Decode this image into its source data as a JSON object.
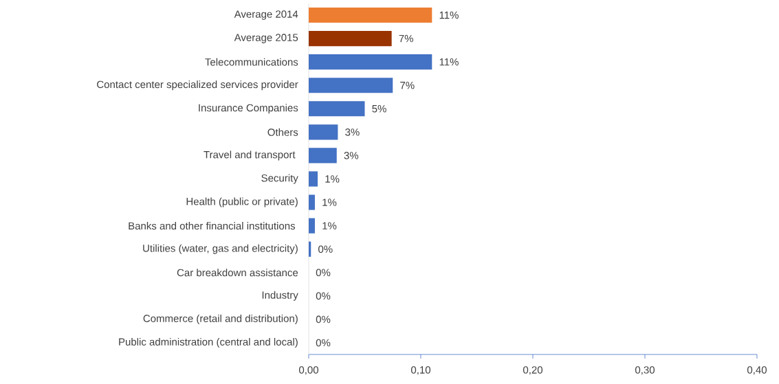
{
  "chart_data": {
    "type": "bar",
    "orientation": "horizontal",
    "categories": [
      "Average 2014",
      "Average 2015",
      "Telecommunications",
      "Contact center specialized services provider",
      "Insurance Companies",
      "Others",
      "Travel and transport ",
      "Security",
      "Health (public or private)",
      "Banks and other financial institutions ",
      "Utilities (water, gas and electricity)",
      "Car breakdown assistance",
      "Industry",
      "Commerce (retail and distribution)",
      "Public administration (central and local)"
    ],
    "values": [
      0.11,
      0.074,
      0.11,
      0.075,
      0.05,
      0.026,
      0.025,
      0.008,
      0.0055,
      0.0055,
      0.002,
      0,
      0,
      0,
      0
    ],
    "value_labels": [
      "11%",
      "7%",
      "11%",
      "7%",
      "5%",
      "3%",
      "3%",
      "1%",
      "1%",
      "1%",
      "0%",
      "0%",
      "0%",
      "0%",
      "0%"
    ],
    "colors": [
      "#ed7d31",
      "#993300",
      "#4472c4",
      "#4472c4",
      "#4472c4",
      "#4472c4",
      "#4472c4",
      "#4472c4",
      "#4472c4",
      "#4472c4",
      "#4472c4",
      "#4472c4",
      "#4472c4",
      "#4472c4",
      "#4472c4"
    ],
    "xlim": [
      0,
      0.4
    ],
    "xticks": [
      {
        "value": 0,
        "label": "0,00"
      },
      {
        "value": 0.1,
        "label": "0,10"
      },
      {
        "value": 0.2,
        "label": "0,20"
      },
      {
        "value": 0.3,
        "label": "0,30"
      },
      {
        "value": 0.4,
        "label": "0,40"
      }
    ]
  }
}
